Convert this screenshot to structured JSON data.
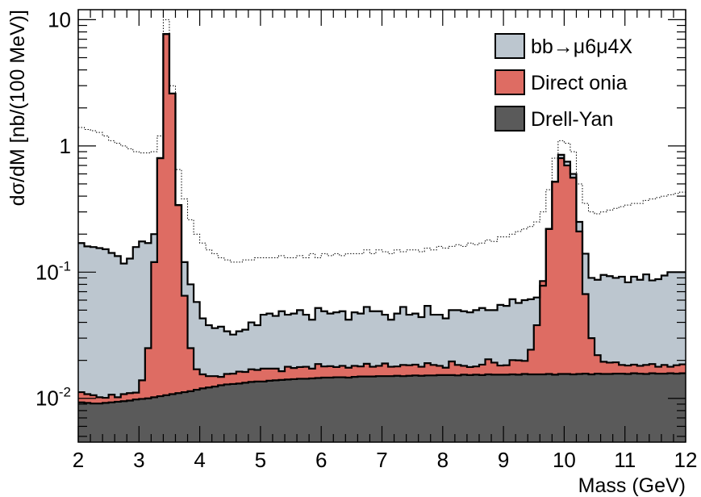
{
  "chart_data": {
    "type": "area",
    "title": "",
    "xlabel": "Mass (GeV)",
    "ylabel": "dσ/dM [nb/(100 MeV)]",
    "x_ticks": [
      "2",
      "3",
      "4",
      "5",
      "6",
      "7",
      "8",
      "9",
      "10",
      "11",
      "12"
    ],
    "y_ticks": [
      {
        "value": 0.01,
        "base": "10",
        "exp": "-2"
      },
      {
        "value": 0.1,
        "base": "10",
        "exp": "-1"
      },
      {
        "value": 1,
        "base": "1",
        "exp": ""
      },
      {
        "value": 10,
        "base": "10",
        "exp": ""
      }
    ],
    "xlim": [
      2,
      12
    ],
    "ylim": [
      0.0045,
      12
    ],
    "log_y": true,
    "grid": false,
    "legend_position": "top-right",
    "colors": {
      "bb": "#bcc6cf",
      "onia": "#de6c63",
      "drell_yan": "#5a5a5a",
      "dotted": "#000000"
    },
    "legend": [
      {
        "label": "bb→μ6μ4X",
        "color": "#bcc6cf"
      },
      {
        "label": "Direct onia",
        "color": "#de6c63"
      },
      {
        "label": "Drell-Yan",
        "color": "#5a5a5a"
      }
    ],
    "bin_width": 0.1,
    "x_start": 2.0,
    "series": [
      {
        "name": "Drell-Yan",
        "values": [
          0.0093,
          0.0092,
          0.0091,
          0.0091,
          0.0092,
          0.0093,
          0.0094,
          0.0095,
          0.0096,
          0.0098,
          0.0099,
          0.01,
          0.0102,
          0.0104,
          0.0106,
          0.0108,
          0.011,
          0.0112,
          0.0114,
          0.0117,
          0.012,
          0.0122,
          0.0124,
          0.0127,
          0.0129,
          0.013,
          0.0131,
          0.0133,
          0.0135,
          0.0136,
          0.0136,
          0.0138,
          0.0139,
          0.014,
          0.0141,
          0.0142,
          0.0143,
          0.0143,
          0.0144,
          0.0145,
          0.0146,
          0.0146,
          0.0147,
          0.0147,
          0.0146,
          0.0148,
          0.0149,
          0.0149,
          0.0149,
          0.015,
          0.015,
          0.015,
          0.0151,
          0.015,
          0.0151,
          0.0152,
          0.0151,
          0.0152,
          0.0152,
          0.0153,
          0.0153,
          0.0153,
          0.0152,
          0.0154,
          0.0153,
          0.0154,
          0.0153,
          0.0155,
          0.0154,
          0.0154,
          0.0154,
          0.0155,
          0.0154,
          0.0156,
          0.0155,
          0.0155,
          0.0155,
          0.0156,
          0.0154,
          0.0156,
          0.0156,
          0.0155,
          0.0156,
          0.0157,
          0.0155,
          0.0157,
          0.0156,
          0.0156,
          0.0157,
          0.0157,
          0.0156,
          0.0158,
          0.0157,
          0.0156,
          0.0158,
          0.0157,
          0.0157,
          0.0158,
          0.0157,
          0.0158
        ]
      },
      {
        "name": "Direct onia",
        "values": [
          0.0112,
          0.0108,
          0.0106,
          0.0102,
          0.0101,
          0.0107,
          0.0102,
          0.0108,
          0.011,
          0.0111,
          0.0139,
          0.025,
          0.12,
          0.8,
          7.7,
          2.6,
          0.34,
          0.065,
          0.025,
          0.017,
          0.0155,
          0.015,
          0.015,
          0.0148,
          0.0156,
          0.0157,
          0.0163,
          0.0162,
          0.017,
          0.0168,
          0.0172,
          0.0172,
          0.0172,
          0.0164,
          0.0178,
          0.0174,
          0.0177,
          0.0178,
          0.0172,
          0.0187,
          0.0179,
          0.018,
          0.0177,
          0.0181,
          0.0175,
          0.0181,
          0.0179,
          0.0188,
          0.0178,
          0.0181,
          0.0189,
          0.0178,
          0.0179,
          0.0184,
          0.0183,
          0.0185,
          0.0178,
          0.019,
          0.0184,
          0.0181,
          0.0175,
          0.0196,
          0.0184,
          0.0181,
          0.0177,
          0.0179,
          0.0185,
          0.0204,
          0.0192,
          0.0182,
          0.0183,
          0.0201,
          0.02,
          0.0198,
          0.0243,
          0.038,
          0.085,
          0.22,
          0.52,
          0.8,
          0.7,
          0.56,
          0.21,
          0.067,
          0.03,
          0.022,
          0.0195,
          0.0192,
          0.0193,
          0.0184,
          0.0182,
          0.0185,
          0.0181,
          0.0184,
          0.0187,
          0.0178,
          0.0184,
          0.0178,
          0.0183,
          0.0186
        ]
      },
      {
        "name": "bb→μ6μ4X",
        "values": [
          0.17,
          0.16,
          0.158,
          0.155,
          0.152,
          0.142,
          0.134,
          0.117,
          0.128,
          0.158,
          0.175,
          0.17,
          0.2,
          0.8,
          7.7,
          2.6,
          0.34,
          0.12,
          0.08,
          0.058,
          0.043,
          0.038,
          0.036,
          0.037,
          0.034,
          0.032,
          0.034,
          0.035,
          0.04,
          0.038,
          0.046,
          0.047,
          0.045,
          0.049,
          0.046,
          0.047,
          0.05,
          0.046,
          0.042,
          0.052,
          0.049,
          0.047,
          0.048,
          0.049,
          0.042,
          0.048,
          0.047,
          0.053,
          0.049,
          0.049,
          0.046,
          0.042,
          0.047,
          0.053,
          0.046,
          0.047,
          0.044,
          0.054,
          0.046,
          0.046,
          0.043,
          0.05,
          0.05,
          0.049,
          0.048,
          0.05,
          0.052,
          0.05,
          0.05,
          0.055,
          0.054,
          0.061,
          0.057,
          0.06,
          0.061,
          0.063,
          0.078,
          0.22,
          0.52,
          0.85,
          0.75,
          0.6,
          0.25,
          0.14,
          0.09,
          0.087,
          0.095,
          0.093,
          0.09,
          0.092,
          0.083,
          0.092,
          0.087,
          0.096,
          0.086,
          0.088,
          0.094,
          0.1,
          0.1,
          0.1
        ]
      },
      {
        "name": "",
        "style": "dotted",
        "values": [
          1.4,
          1.35,
          1.32,
          1.28,
          1.2,
          1.1,
          1.05,
          1.0,
          0.95,
          0.9,
          0.88,
          0.88,
          0.9,
          1.2,
          10.0,
          3.0,
          0.65,
          0.38,
          0.26,
          0.2,
          0.17,
          0.15,
          0.14,
          0.13,
          0.125,
          0.12,
          0.12,
          0.125,
          0.125,
          0.13,
          0.13,
          0.13,
          0.13,
          0.135,
          0.13,
          0.13,
          0.135,
          0.13,
          0.14,
          0.13,
          0.14,
          0.135,
          0.14,
          0.135,
          0.14,
          0.14,
          0.14,
          0.15,
          0.14,
          0.15,
          0.145,
          0.14,
          0.15,
          0.145,
          0.15,
          0.15,
          0.145,
          0.155,
          0.15,
          0.16,
          0.155,
          0.16,
          0.165,
          0.16,
          0.17,
          0.165,
          0.17,
          0.18,
          0.175,
          0.19,
          0.19,
          0.2,
          0.21,
          0.22,
          0.23,
          0.25,
          0.3,
          0.45,
          0.8,
          1.1,
          1.05,
          0.9,
          0.5,
          0.35,
          0.3,
          0.29,
          0.3,
          0.31,
          0.32,
          0.33,
          0.34,
          0.35,
          0.35,
          0.37,
          0.38,
          0.39,
          0.4,
          0.41,
          0.42,
          0.43
        ]
      }
    ]
  }
}
